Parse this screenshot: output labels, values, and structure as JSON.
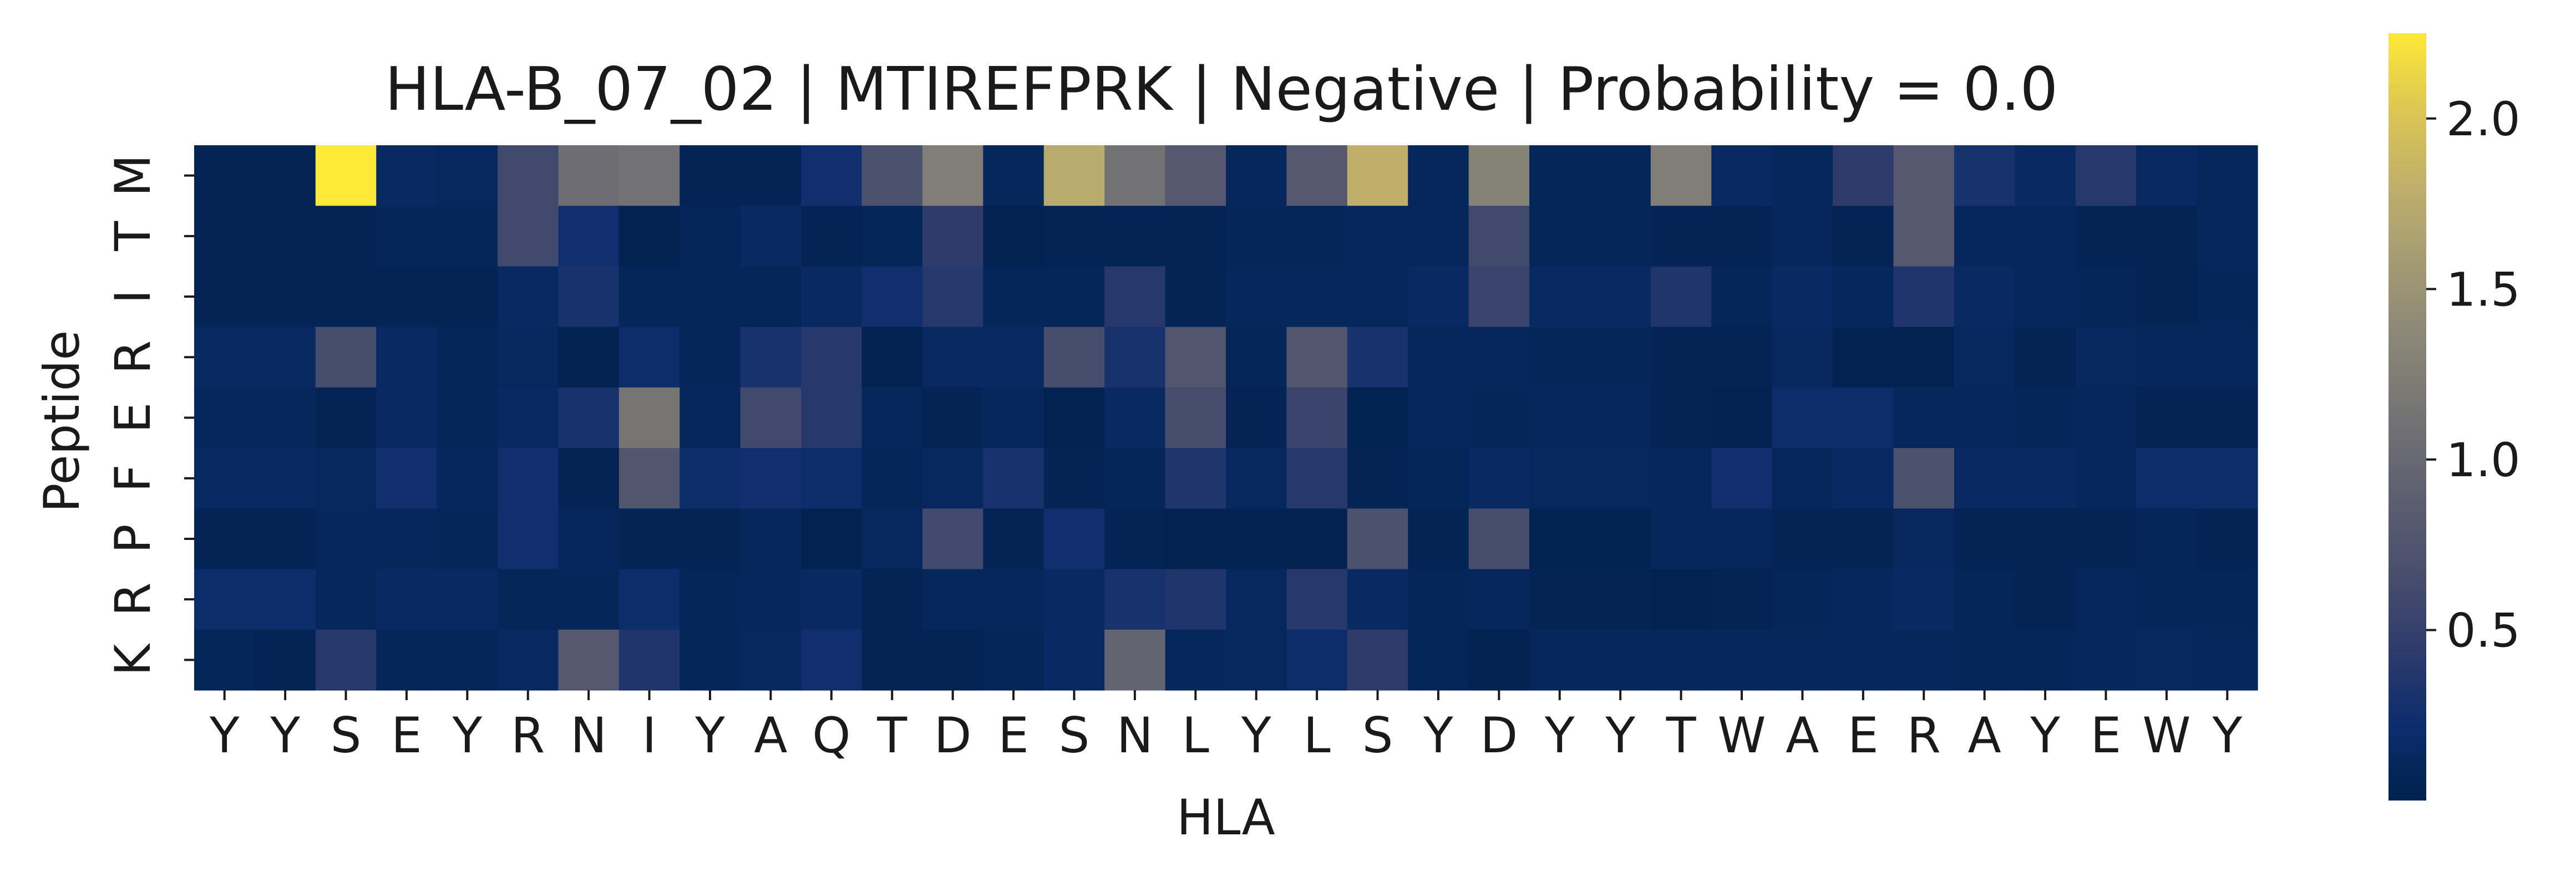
{
  "chart_data": {
    "type": "heatmap",
    "title": "HLA-B_07_02 | MTIREFPRK | Negative | Probability = 0.0",
    "xlabel": "HLA",
    "ylabel": "Peptide",
    "x_categories": [
      "Y",
      "Y",
      "S",
      "E",
      "Y",
      "R",
      "N",
      "I",
      "Y",
      "A",
      "Q",
      "T",
      "D",
      "E",
      "S",
      "N",
      "L",
      "Y",
      "L",
      "S",
      "Y",
      "D",
      "Y",
      "Y",
      "T",
      "W",
      "A",
      "E",
      "R",
      "A",
      "Y",
      "E",
      "W",
      "Y"
    ],
    "y_categories": [
      "M",
      "T",
      "I",
      "R",
      "E",
      "F",
      "P",
      "R",
      "K"
    ],
    "colorbar": {
      "ticks": [
        0.5,
        1.0,
        1.5,
        2.0
      ],
      "tick_labels": [
        "0.5",
        "1.0",
        "1.5",
        "2.0"
      ],
      "range": [
        0.0,
        2.25
      ]
    },
    "colormap": "cividis",
    "values": [
      [
        0.05,
        0.05,
        2.25,
        0.15,
        0.12,
        0.6,
        1.05,
        1.1,
        0.05,
        0.05,
        0.25,
        0.7,
        1.25,
        0.1,
        1.75,
        1.1,
        0.8,
        0.1,
        0.8,
        1.8,
        0.1,
        1.3,
        0.08,
        0.08,
        1.25,
        0.15,
        0.1,
        0.45,
        0.8,
        0.3,
        0.15,
        0.4,
        0.15,
        0.1
      ],
      [
        0.05,
        0.05,
        0.05,
        0.08,
        0.08,
        0.6,
        0.25,
        0.03,
        0.08,
        0.15,
        0.05,
        0.08,
        0.45,
        0.03,
        0.05,
        0.05,
        0.05,
        0.08,
        0.08,
        0.1,
        0.1,
        0.6,
        0.08,
        0.08,
        0.05,
        0.05,
        0.1,
        0.05,
        0.8,
        0.1,
        0.1,
        0.05,
        0.05,
        0.1
      ],
      [
        0.05,
        0.05,
        0.05,
        0.05,
        0.05,
        0.15,
        0.3,
        0.08,
        0.08,
        0.08,
        0.15,
        0.25,
        0.4,
        0.08,
        0.08,
        0.4,
        0.05,
        0.1,
        0.1,
        0.1,
        0.15,
        0.55,
        0.15,
        0.15,
        0.35,
        0.08,
        0.15,
        0.1,
        0.35,
        0.15,
        0.1,
        0.08,
        0.05,
        0.08
      ],
      [
        0.15,
        0.15,
        0.65,
        0.15,
        0.08,
        0.12,
        0.03,
        0.2,
        0.08,
        0.3,
        0.4,
        0.03,
        0.15,
        0.15,
        0.65,
        0.3,
        0.75,
        0.08,
        0.75,
        0.3,
        0.1,
        0.1,
        0.08,
        0.08,
        0.05,
        0.05,
        0.12,
        0.03,
        0.03,
        0.12,
        0.05,
        0.12,
        0.1,
        0.1
      ],
      [
        0.1,
        0.1,
        0.05,
        0.15,
        0.08,
        0.15,
        0.3,
        1.15,
        0.1,
        0.6,
        0.4,
        0.1,
        0.05,
        0.1,
        0.03,
        0.15,
        0.65,
        0.05,
        0.55,
        0.02,
        0.1,
        0.08,
        0.1,
        0.1,
        0.05,
        0.03,
        0.2,
        0.2,
        0.1,
        0.1,
        0.08,
        0.1,
        0.05,
        0.05
      ],
      [
        0.15,
        0.15,
        0.12,
        0.25,
        0.1,
        0.25,
        0.05,
        0.75,
        0.2,
        0.25,
        0.2,
        0.08,
        0.12,
        0.3,
        0.05,
        0.08,
        0.35,
        0.12,
        0.4,
        0.05,
        0.08,
        0.15,
        0.12,
        0.12,
        0.1,
        0.25,
        0.1,
        0.15,
        0.7,
        0.15,
        0.15,
        0.1,
        0.2,
        0.2
      ],
      [
        0.05,
        0.05,
        0.1,
        0.1,
        0.08,
        0.25,
        0.1,
        0.05,
        0.05,
        0.1,
        0.03,
        0.12,
        0.6,
        0.05,
        0.25,
        0.05,
        0.03,
        0.03,
        0.03,
        0.7,
        0.05,
        0.65,
        0.02,
        0.02,
        0.1,
        0.1,
        0.05,
        0.05,
        0.12,
        0.05,
        0.05,
        0.05,
        0.08,
        0.05
      ],
      [
        0.2,
        0.2,
        0.1,
        0.15,
        0.15,
        0.08,
        0.08,
        0.2,
        0.08,
        0.1,
        0.15,
        0.05,
        0.1,
        0.1,
        0.15,
        0.3,
        0.35,
        0.12,
        0.4,
        0.15,
        0.08,
        0.1,
        0.05,
        0.05,
        0.03,
        0.05,
        0.08,
        0.1,
        0.15,
        0.08,
        0.05,
        0.1,
        0.08,
        0.08
      ],
      [
        0.08,
        0.05,
        0.4,
        0.08,
        0.08,
        0.15,
        0.8,
        0.35,
        0.08,
        0.12,
        0.25,
        0.05,
        0.05,
        0.08,
        0.15,
        0.95,
        0.1,
        0.12,
        0.2,
        0.45,
        0.08,
        0.03,
        0.1,
        0.1,
        0.1,
        0.1,
        0.1,
        0.1,
        0.1,
        0.08,
        0.08,
        0.1,
        0.12,
        0.1
      ]
    ]
  }
}
